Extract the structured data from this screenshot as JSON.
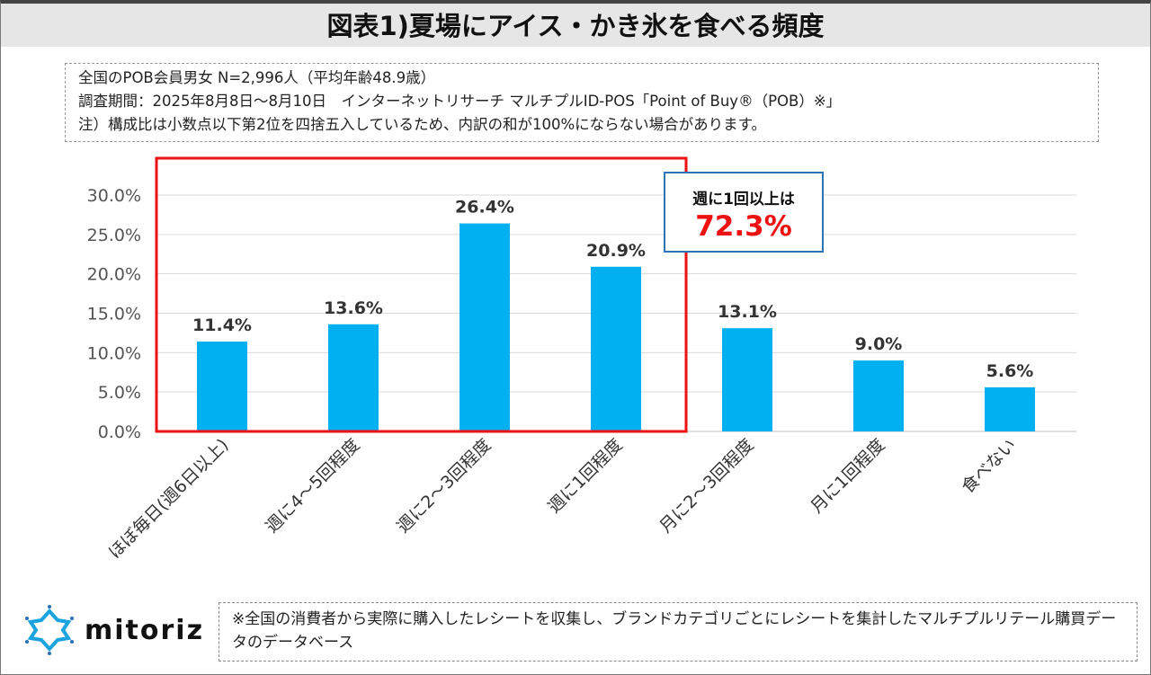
{
  "title": "図表1)夏場にアイス・かき氷を食べる頻度",
  "notes": [
    "全国のPOB会員男女 N=2,996人（平均年齢48.9歳）",
    "調査期間：2025年8月8日〜8月10日　インターネットリサーチ マルチプルID-POS「Point of Buy®（POB）※」",
    "注）構成比は小数点以下第2位を四捨五入しているため、内訳の和が100%にならない場合があります。"
  ],
  "callout": {
    "line1": "週に1回以上は",
    "line2": "72.3%",
    "color": "#ee1111"
  },
  "footnote": "※全国の消費者から実際に購入したレシートを収集し、ブランドカテゴリごとにレシートを集計したマルチプルリテール購買データのデータベース",
  "logo": "mitoriz",
  "chart_data": {
    "type": "bar",
    "categories": [
      "ほぼ毎日(週6日以上)",
      "週に4〜5回程度",
      "週に2〜3回程度",
      "週に1回程度",
      "月に2〜3回程度",
      "月に1回程度",
      "食べない"
    ],
    "values": [
      11.4,
      13.6,
      26.4,
      20.9,
      13.1,
      9.0,
      5.6
    ],
    "data_labels": [
      "11.4%",
      "13.6%",
      "26.4%",
      "20.9%",
      "13.1%",
      "9.0%",
      "5.6%"
    ],
    "ylim": [
      0,
      30
    ],
    "yticks": [
      "0.0%",
      "5.0%",
      "10.0%",
      "15.0%",
      "20.0%",
      "25.0%",
      "30.0%"
    ],
    "grid": true,
    "bar_color": "#00b0f0",
    "highlight_color": "#ee1111",
    "highlighted_categories": [
      0,
      1,
      2,
      3
    ]
  }
}
